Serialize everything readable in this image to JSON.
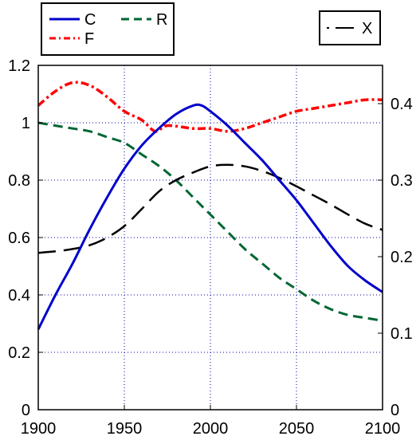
{
  "chart_data": {
    "type": "line",
    "title": "",
    "xlabel": "",
    "ylabel": "",
    "xlim": [
      1900,
      2100
    ],
    "ylim": [
      0,
      1.2
    ],
    "y2lim": [
      0,
      0.45
    ],
    "grid": true,
    "x_ticks": [
      "1900",
      "1950",
      "2000",
      "2050",
      "2100"
    ],
    "y_ticks": [
      "0",
      "0.2",
      "0.4",
      "0.6",
      "0.8",
      "1",
      "1.2"
    ],
    "y2_ticks": [
      "0",
      "0.1",
      "0.2",
      "0.3",
      "0.4"
    ],
    "legend_left": [
      "C",
      "R",
      "F"
    ],
    "legend_right": [
      "X"
    ],
    "series": [
      {
        "name": "C",
        "axis": "left",
        "color": "#0000cc",
        "style": "solid",
        "x": [
          1900,
          1910,
          1920,
          1930,
          1940,
          1950,
          1960,
          1970,
          1980,
          1990,
          1995,
          2000,
          2010,
          2020,
          2030,
          2040,
          2050,
          2060,
          2070,
          2080,
          2090,
          2100
        ],
        "y": [
          0.28,
          0.4,
          0.51,
          0.63,
          0.74,
          0.84,
          0.92,
          0.98,
          1.03,
          1.06,
          1.06,
          1.04,
          0.99,
          0.93,
          0.87,
          0.8,
          0.73,
          0.65,
          0.57,
          0.5,
          0.45,
          0.41
        ]
      },
      {
        "name": "F",
        "axis": "left",
        "color": "#ff0000",
        "style": "dashdot",
        "x": [
          1900,
          1910,
          1920,
          1930,
          1940,
          1950,
          1960,
          1968,
          1975,
          1990,
          2000,
          2010,
          2020,
          2030,
          2040,
          2050,
          2060,
          2070,
          2080,
          2090,
          2100
        ],
        "y": [
          1.06,
          1.11,
          1.14,
          1.13,
          1.09,
          1.04,
          1.01,
          0.97,
          0.99,
          0.98,
          0.98,
          0.97,
          0.98,
          1.0,
          1.02,
          1.04,
          1.05,
          1.06,
          1.07,
          1.08,
          1.08
        ]
      },
      {
        "name": "R",
        "axis": "left",
        "color": "#006633",
        "style": "dashed",
        "x": [
          1900,
          1910,
          1920,
          1930,
          1940,
          1950,
          1960,
          1970,
          1980,
          1990,
          2000,
          2010,
          2020,
          2030,
          2040,
          2050,
          2060,
          2070,
          2080,
          2090,
          2100
        ],
        "y": [
          1.0,
          0.99,
          0.98,
          0.97,
          0.95,
          0.93,
          0.89,
          0.85,
          0.8,
          0.74,
          0.68,
          0.62,
          0.56,
          0.51,
          0.46,
          0.42,
          0.38,
          0.35,
          0.33,
          0.32,
          0.31
        ]
      },
      {
        "name": "X",
        "axis": "right",
        "color": "#000000",
        "style": "longdash",
        "x": [
          1900,
          1910,
          1920,
          1930,
          1940,
          1950,
          1960,
          1970,
          1980,
          1990,
          2000,
          2010,
          2020,
          2030,
          2040,
          2050,
          2060,
          2070,
          2080,
          2090,
          2100
        ],
        "y": [
          0.205,
          0.207,
          0.21,
          0.215,
          0.225,
          0.24,
          0.262,
          0.285,
          0.3,
          0.31,
          0.318,
          0.32,
          0.318,
          0.312,
          0.303,
          0.292,
          0.28,
          0.268,
          0.255,
          0.243,
          0.235
        ]
      }
    ]
  }
}
